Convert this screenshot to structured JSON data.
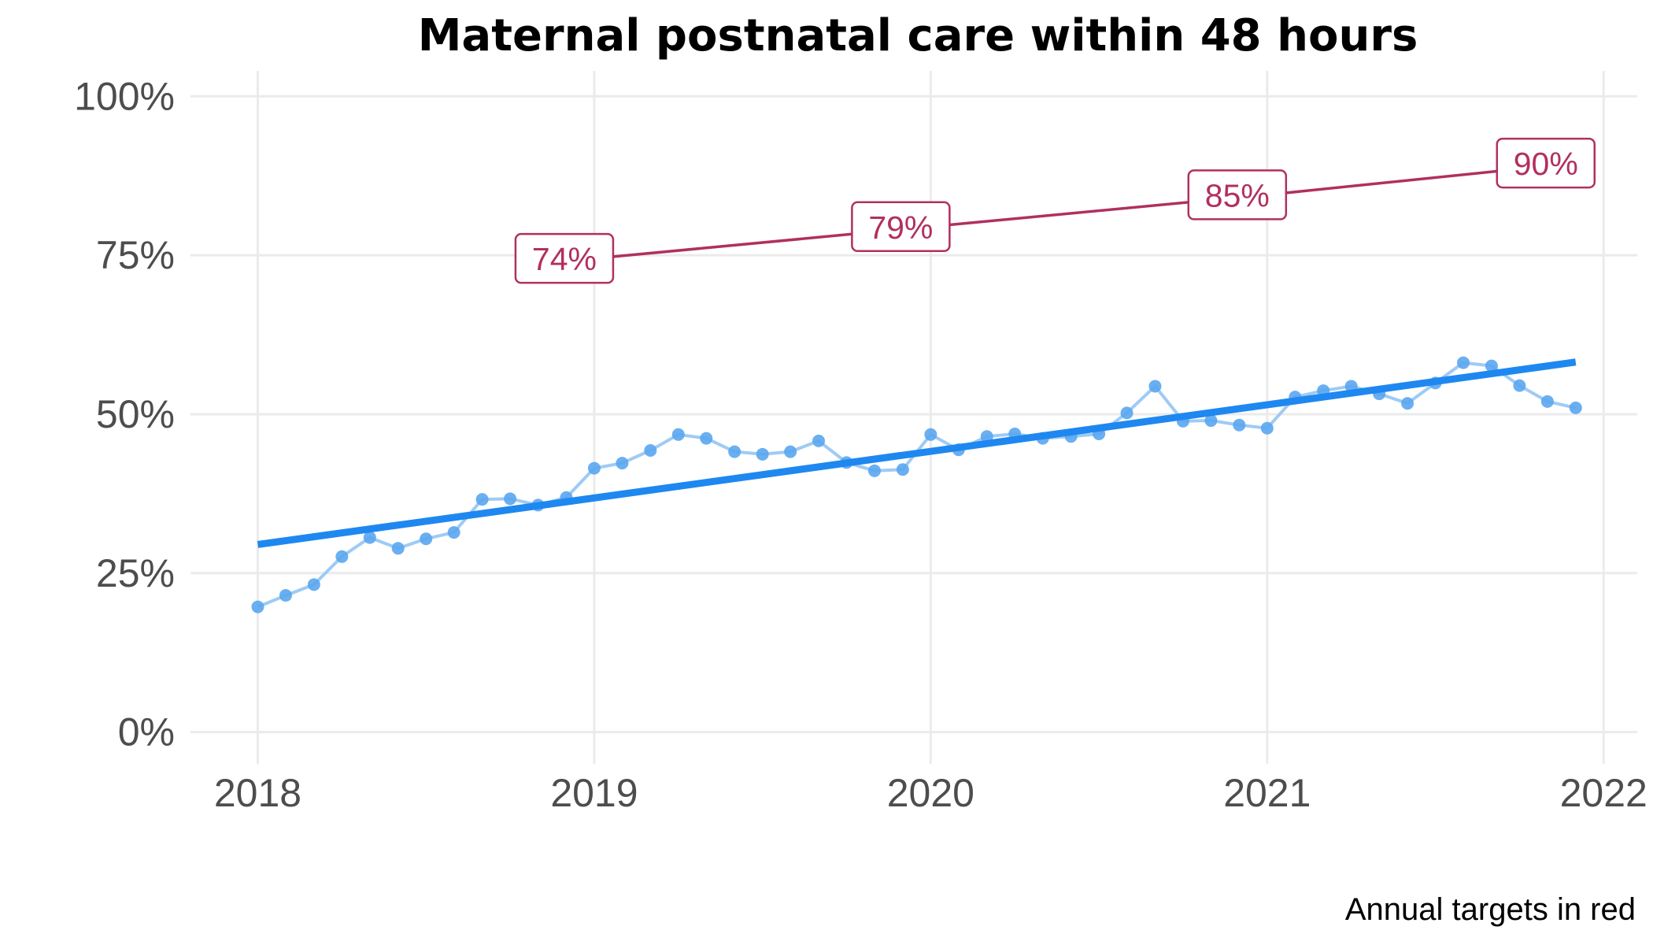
{
  "chart_data": {
    "type": "line",
    "title": "Maternal postnatal care within 48 hours",
    "caption": "Annual targets in red",
    "xlabel": "",
    "ylabel": "",
    "xlim": [
      2017.8,
      2022.1
    ],
    "ylim": [
      -0.05,
      1.04
    ],
    "x_ticks": [
      2018,
      2019,
      2020,
      2021,
      2022
    ],
    "x_tick_labels": [
      "2018",
      "2019",
      "2020",
      "2021",
      "2022"
    ],
    "y_ticks": [
      0,
      0.25,
      0.5,
      0.75,
      1.0
    ],
    "y_tick_labels": [
      "0%",
      "25%",
      "50%",
      "75%",
      "100%"
    ],
    "grid": true,
    "colors": {
      "monthly_line": "#9ecbf5",
      "monthly_point": "#5aa6ef",
      "trend": "#1e88f0",
      "target": "#b03060",
      "grid": "#ebebeb"
    },
    "series": [
      {
        "kind": "monthly",
        "x": [
          2018.0,
          2018.083,
          2018.167,
          2018.25,
          2018.333,
          2018.417,
          2018.5,
          2018.583,
          2018.667,
          2018.75,
          2018.833,
          2018.917,
          2019.0,
          2019.083,
          2019.167,
          2019.25,
          2019.333,
          2019.417,
          2019.5,
          2019.583,
          2019.667,
          2019.75,
          2019.833,
          2019.917,
          2020.0,
          2020.083,
          2020.167,
          2020.25,
          2020.333,
          2020.417,
          2020.5,
          2020.583,
          2020.667,
          2020.75,
          2020.833,
          2020.917,
          2021.0,
          2021.083,
          2021.167,
          2021.25,
          2021.333,
          2021.417,
          2021.5,
          2021.583,
          2021.667,
          2021.75,
          2021.833,
          2021.917
        ],
        "values": [
          0.197,
          0.215,
          0.232,
          0.276,
          0.306,
          0.289,
          0.304,
          0.314,
          0.366,
          0.367,
          0.357,
          0.369,
          0.415,
          0.423,
          0.443,
          0.468,
          0.462,
          0.441,
          0.437,
          0.441,
          0.458,
          0.424,
          0.411,
          0.413,
          0.468,
          0.444,
          0.465,
          0.469,
          0.462,
          0.465,
          0.469,
          0.502,
          0.544,
          0.489,
          0.49,
          0.483,
          0.478,
          0.527,
          0.537,
          0.544,
          0.532,
          0.517,
          0.549,
          0.581,
          0.576,
          0.545,
          0.52,
          0.51
        ]
      },
      {
        "kind": "trend",
        "x": [
          2018.0,
          2021.917
        ],
        "values": [
          0.295,
          0.582
        ]
      },
      {
        "kind": "target",
        "x": [
          2019.0,
          2020.0,
          2021.0,
          2021.917
        ],
        "values": [
          0.745,
          0.795,
          0.845,
          0.895
        ],
        "labels": [
          "74%",
          "79%",
          "85%",
          "90%"
        ]
      }
    ]
  }
}
